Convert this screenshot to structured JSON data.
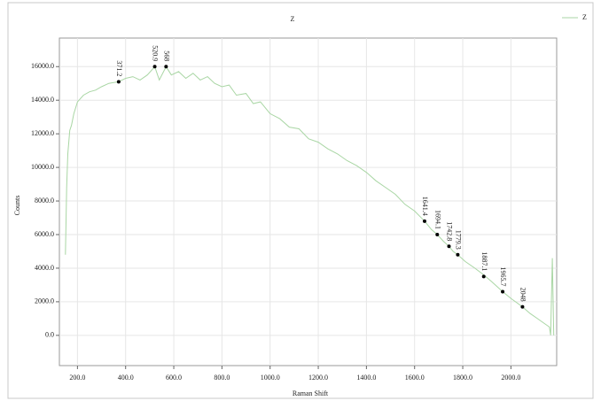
{
  "chart_data": {
    "type": "line",
    "title": "Z",
    "xlabel": "Raman Shift",
    "ylabel": "Counts",
    "series": [
      {
        "name": "Z",
        "color": "#a9d6a4",
        "x": [
          150,
          155,
          160,
          168,
          175,
          185,
          200,
          225,
          250,
          275,
          300,
          330,
          371.2,
          400,
          430,
          460,
          490,
          520.9,
          540,
          568,
          590,
          620,
          650,
          680,
          710,
          740,
          770,
          800,
          830,
          860,
          900,
          930,
          960,
          1000,
          1040,
          1080,
          1120,
          1160,
          1200,
          1240,
          1280,
          1320,
          1360,
          1400,
          1440,
          1480,
          1520,
          1560,
          1600,
          1641.4,
          1670,
          1694.1,
          1720,
          1742.8,
          1760,
          1779.3,
          1810,
          1850,
          1887.1,
          1920,
          1965.7,
          2000,
          2048,
          2080,
          2110,
          2140,
          2160,
          2165,
          2172,
          2178
        ],
        "values": [
          4800,
          8800,
          10800,
          12200,
          12500,
          13200,
          13900,
          14300,
          14500,
          14600,
          14800,
          15000,
          15100,
          15300,
          15400,
          15200,
          15500,
          16000,
          15200,
          16000,
          15500,
          15700,
          15300,
          15600,
          15200,
          15400,
          15000,
          14800,
          14900,
          14300,
          14400,
          13800,
          13900,
          13200,
          12900,
          12400,
          12300,
          11700,
          11500,
          11100,
          10800,
          10400,
          10100,
          9700,
          9200,
          8800,
          8400,
          7800,
          7400,
          6800,
          6300,
          6000,
          5600,
          5300,
          5000,
          4800,
          4400,
          4000,
          3600,
          3200,
          2600,
          2200,
          1700,
          1300,
          1000,
          700,
          500,
          0,
          4600,
          0
        ]
      }
    ],
    "annotations": [
      {
        "x": 371.2,
        "y": 15100
      },
      {
        "x": 520.9,
        "y": 16000
      },
      {
        "x": 568,
        "y": 16000
      },
      {
        "x": 1641.4,
        "y": 6800
      },
      {
        "x": 1694.1,
        "y": 6000
      },
      {
        "x": 1742.8,
        "y": 5300
      },
      {
        "x": 1779.3,
        "y": 4800
      },
      {
        "x": 1887.1,
        "y": 3500
      },
      {
        "x": 1965.7,
        "y": 2600
      },
      {
        "x": 2048,
        "y": 1700
      }
    ],
    "xlim": [
      125,
      2190
    ],
    "ylim": [
      -1800,
      17700
    ],
    "xticks": [
      {
        "value": 200,
        "label": "200.0"
      },
      {
        "value": 400,
        "label": "400.0"
      },
      {
        "value": 600,
        "label": "600.0"
      },
      {
        "value": 800,
        "label": "800.0"
      },
      {
        "value": 1000,
        "label": "1000.0"
      },
      {
        "value": 1200,
        "label": "1200.0"
      },
      {
        "value": 1400,
        "label": "1400.0"
      },
      {
        "value": 1600,
        "label": "1600.0"
      },
      {
        "value": 1800,
        "label": "1800.0"
      },
      {
        "value": 2000,
        "label": "2000.0"
      }
    ],
    "yticks": [
      {
        "value": 0,
        "label": "0.0"
      },
      {
        "value": 2000,
        "label": "2000.0"
      },
      {
        "value": 4000,
        "label": "4000.0"
      },
      {
        "value": 6000,
        "label": "6000.0"
      },
      {
        "value": 8000,
        "label": "8000.0"
      },
      {
        "value": 10000,
        "label": "10000.0"
      },
      {
        "value": 12000,
        "label": "12000.0"
      },
      {
        "value": 14000,
        "label": "14000.0"
      },
      {
        "value": 16000,
        "label": "16000.0"
      }
    ],
    "grid": true,
    "legend": "top-right"
  }
}
